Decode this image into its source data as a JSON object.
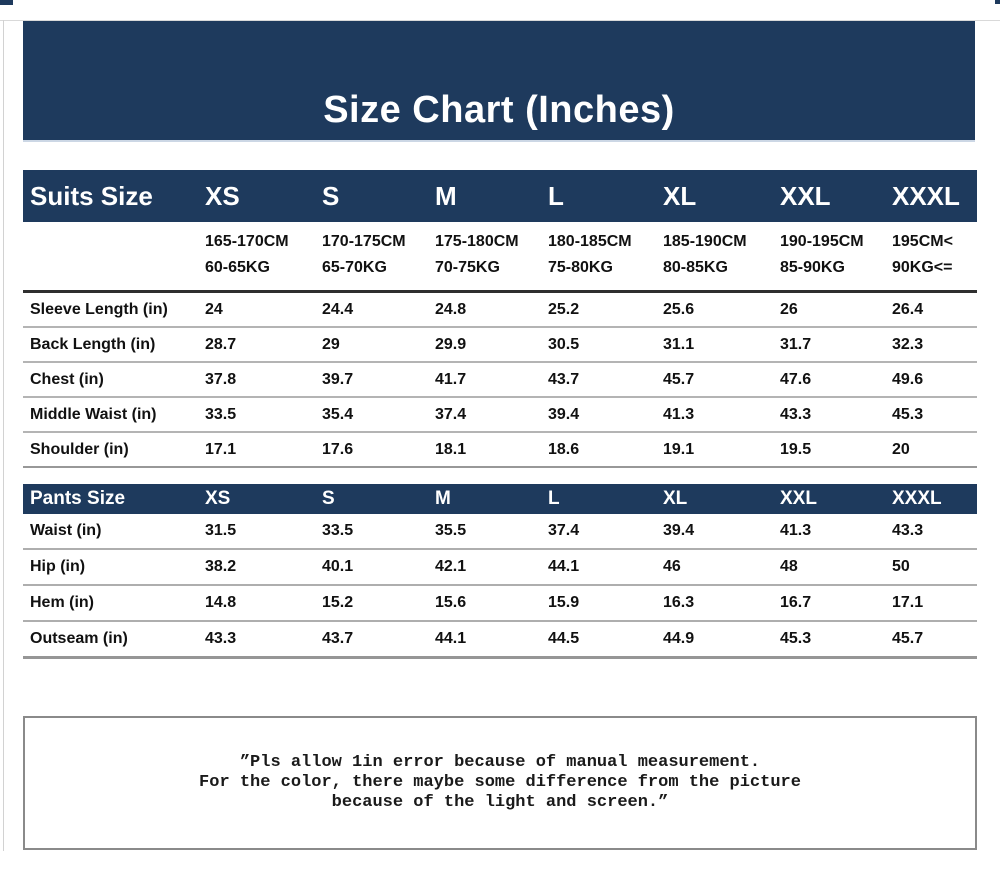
{
  "title": "Size Chart (Inches)",
  "colors": {
    "navy_band": "#1e3a5d",
    "band_text": "#ffffff",
    "table_text": "#111111",
    "note_border": "#8a8a8a"
  },
  "tables": {
    "suits": {
      "label": "Suits Size",
      "sizes": [
        "XS",
        "S",
        "M",
        "L",
        "XL",
        "XXL",
        "XXXL"
      ],
      "ranges": [
        {
          "height": "165-170CM",
          "weight": "60-65KG"
        },
        {
          "height": "170-175CM",
          "weight": "65-70KG"
        },
        {
          "height": "175-180CM",
          "weight": "70-75KG"
        },
        {
          "height": "180-185CM",
          "weight": "75-80KG"
        },
        {
          "height": "185-190CM",
          "weight": "80-85KG"
        },
        {
          "height": "190-195CM",
          "weight": "85-90KG"
        },
        {
          "height": "195CM<",
          "weight": "90KG<="
        }
      ],
      "rows": [
        {
          "label": "Sleeve Length (in)",
          "values": [
            "24",
            "24.4",
            "24.8",
            "25.2",
            "25.6",
            "26",
            "26.4"
          ]
        },
        {
          "label": "Back Length (in)",
          "values": [
            "28.7",
            "29",
            "29.9",
            "30.5",
            "31.1",
            "31.7",
            "32.3"
          ]
        },
        {
          "label": "Chest (in)",
          "values": [
            "37.8",
            "39.7",
            "41.7",
            "43.7",
            "45.7",
            "47.6",
            "49.6"
          ]
        },
        {
          "label": "Middle Waist (in)",
          "values": [
            "33.5",
            "35.4",
            "37.4",
            "39.4",
            "41.3",
            "43.3",
            "45.3"
          ]
        },
        {
          "label": "Shoulder (in)",
          "values": [
            "17.1",
            "17.6",
            "18.1",
            "18.6",
            "19.1",
            "19.5",
            "20"
          ]
        }
      ]
    },
    "pants": {
      "label": "Pants Size",
      "sizes": [
        "XS",
        "S",
        "M",
        "L",
        "XL",
        "XXL",
        "XXXL"
      ],
      "rows": [
        {
          "label": "Waist (in)",
          "values": [
            "31.5",
            "33.5",
            "35.5",
            "37.4",
            "39.4",
            "41.3",
            "43.3"
          ]
        },
        {
          "label": "Hip (in)",
          "values": [
            "38.2",
            "40.1",
            "42.1",
            "44.1",
            "46",
            "48",
            "50"
          ]
        },
        {
          "label": "Hem (in)",
          "values": [
            "14.8",
            "15.2",
            "15.6",
            "15.9",
            "16.3",
            "16.7",
            "17.1"
          ]
        },
        {
          "label": "Outseam (in)",
          "values": [
            "43.3",
            "43.7",
            "44.1",
            "44.5",
            "44.9",
            "45.3",
            "45.7"
          ]
        }
      ]
    }
  },
  "note": {
    "lines": [
      "”Pls allow 1in error because of manual measurement.",
      "For the color, there maybe some difference from the picture",
      "because of the light and screen.”"
    ]
  }
}
